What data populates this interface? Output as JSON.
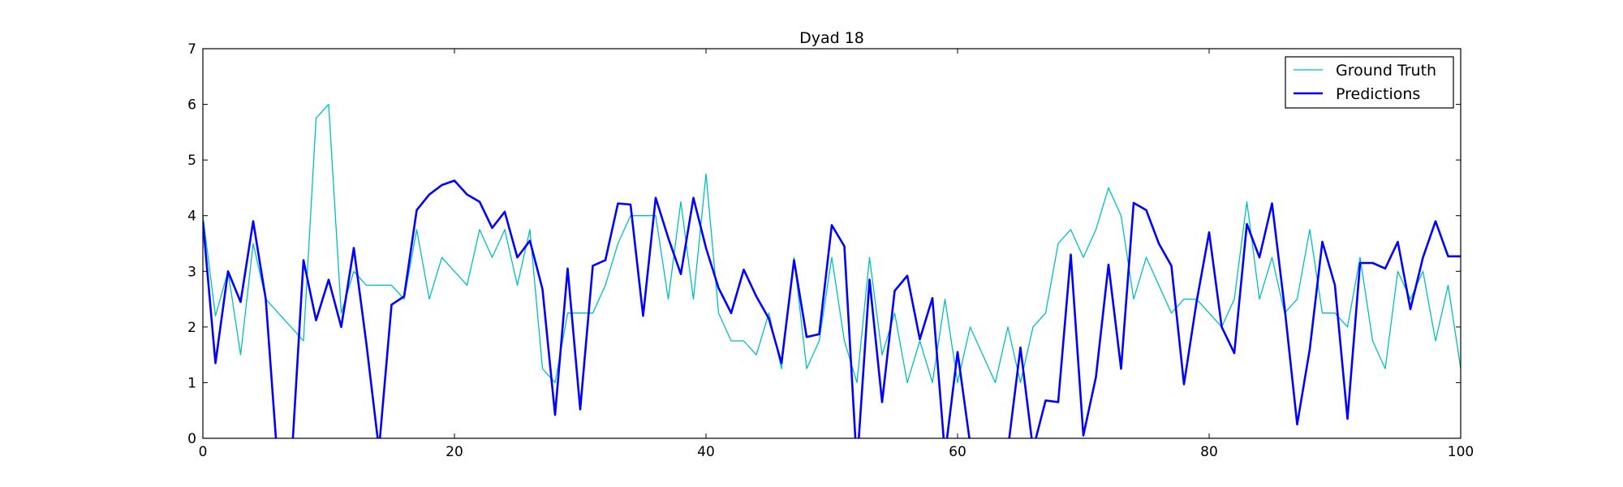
{
  "chart_data": {
    "type": "line",
    "title": "Dyad 18",
    "xlabel": "",
    "ylabel": "",
    "xlim": [
      0,
      100
    ],
    "ylim": [
      0,
      7
    ],
    "x_ticks": [
      0,
      20,
      40,
      60,
      80,
      100
    ],
    "y_ticks": [
      0,
      1,
      2,
      3,
      4,
      5,
      6,
      7
    ],
    "grid": false,
    "legend_position": "top-right",
    "series": [
      {
        "name": "Ground Truth",
        "color": "#00bfbf",
        "line_weight": "thin",
        "values": [
          4.0,
          2.2,
          3.0,
          1.5,
          3.5,
          2.5,
          2.25,
          2.0,
          1.75,
          5.75,
          6.0,
          2.25,
          3.0,
          2.75,
          2.75,
          2.75,
          2.5,
          3.75,
          2.5,
          3.25,
          3.0,
          2.75,
          3.75,
          3.25,
          3.75,
          2.75,
          3.75,
          1.25,
          1.0,
          2.25,
          2.25,
          2.25,
          2.75,
          3.5,
          4.0,
          4.0,
          4.0,
          2.5,
          4.25,
          2.5,
          4.75,
          2.25,
          1.75,
          1.75,
          1.5,
          2.25,
          1.25,
          3.25,
          1.25,
          1.75,
          3.25,
          1.75,
          1.0,
          3.25,
          1.5,
          2.25,
          1.0,
          1.75,
          1.0,
          2.5,
          1.0,
          2.0,
          1.5,
          1.0,
          2.0,
          1.0,
          2.0,
          2.25,
          3.5,
          3.75,
          3.25,
          3.75,
          4.5,
          4.0,
          2.5,
          3.25,
          2.75,
          2.25,
          2.5,
          2.5,
          2.25,
          2.0,
          2.5,
          4.25,
          2.5,
          3.25,
          2.25,
          2.5,
          3.75,
          2.25,
          2.25,
          2.0,
          3.25,
          1.75,
          1.25,
          3.0,
          2.5,
          3.0,
          1.75,
          2.75,
          1.25
        ]
      },
      {
        "name": "Predictions",
        "color": "#0000ff",
        "line_weight": "thick",
        "values": [
          3.9,
          1.35,
          3.0,
          2.45,
          3.9,
          2.5,
          -0.6,
          -0.6,
          3.2,
          2.12,
          2.85,
          2.0,
          3.42,
          1.7,
          -0.2,
          2.4,
          2.55,
          4.1,
          4.38,
          4.55,
          4.63,
          4.38,
          4.25,
          3.78,
          4.07,
          3.25,
          3.55,
          2.68,
          0.42,
          3.05,
          0.52,
          3.1,
          3.2,
          4.22,
          4.2,
          2.2,
          4.32,
          3.6,
          2.95,
          4.32,
          3.42,
          2.7,
          2.25,
          3.03,
          2.55,
          2.15,
          1.35,
          3.2,
          1.82,
          1.87,
          3.83,
          3.45,
          -0.5,
          2.85,
          0.65,
          2.65,
          2.92,
          1.78,
          2.52,
          -0.3,
          1.55,
          -0.1,
          -0.7,
          -0.8,
          -0.2,
          1.63,
          -0.2,
          0.68,
          0.65,
          3.3,
          0.05,
          1.1,
          3.12,
          1.25,
          4.23,
          4.1,
          3.5,
          3.1,
          0.97,
          2.45,
          3.7,
          2.0,
          1.53,
          3.85,
          3.25,
          4.22,
          2.35,
          0.25,
          1.6,
          3.53,
          2.75,
          0.35,
          3.15,
          3.15,
          3.05,
          3.53,
          2.32,
          3.25,
          3.9,
          3.27,
          3.27
        ]
      }
    ]
  }
}
